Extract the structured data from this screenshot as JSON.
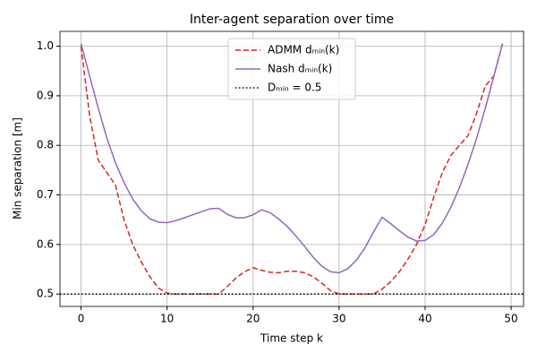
{
  "chart_data": {
    "type": "line",
    "title": "Inter-agent separation over time",
    "xlabel": "Time step k",
    "ylabel": "Min separation [m]",
    "x": [
      0,
      1,
      2,
      3,
      4,
      5,
      6,
      7,
      8,
      9,
      10,
      11,
      12,
      13,
      14,
      15,
      16,
      17,
      18,
      19,
      20,
      21,
      22,
      23,
      24,
      25,
      26,
      27,
      28,
      29,
      30,
      31,
      32,
      33,
      34,
      35,
      36,
      37,
      38,
      39,
      40,
      41,
      42,
      43,
      44,
      45,
      46,
      47,
      48,
      49
    ],
    "series": [
      {
        "name": "ADMM dₘᵢₙ(k)",
        "color": "#d62728",
        "style": "dashed",
        "values": [
          1.0,
          0.86,
          0.77,
          0.745,
          0.72,
          0.65,
          0.6,
          0.565,
          0.535,
          0.512,
          0.502,
          0.5,
          0.5,
          0.5,
          0.5,
          0.5,
          0.5,
          0.515,
          0.532,
          0.545,
          0.553,
          0.548,
          0.544,
          0.543,
          0.546,
          0.546,
          0.543,
          0.535,
          0.522,
          0.507,
          0.5,
          0.5,
          0.5,
          0.5,
          0.5,
          0.51,
          0.525,
          0.545,
          0.57,
          0.6,
          0.64,
          0.695,
          0.745,
          0.78,
          0.8,
          0.82,
          0.865,
          0.92,
          0.94,
          1.005
        ]
      },
      {
        "name": "Nash dₘᵢₙ(k)",
        "color": "#9467bd",
        "style": "solid",
        "values": [
          1.005,
          0.94,
          0.875,
          0.815,
          0.765,
          0.725,
          0.692,
          0.668,
          0.652,
          0.645,
          0.644,
          0.648,
          0.654,
          0.66,
          0.666,
          0.672,
          0.673,
          0.661,
          0.654,
          0.654,
          0.66,
          0.67,
          0.664,
          0.651,
          0.636,
          0.617,
          0.596,
          0.574,
          0.556,
          0.545,
          0.543,
          0.551,
          0.568,
          0.593,
          0.625,
          0.655,
          0.642,
          0.628,
          0.615,
          0.607,
          0.608,
          0.62,
          0.643,
          0.675,
          0.715,
          0.762,
          0.815,
          0.875,
          0.94,
          1.005
        ]
      }
    ],
    "hlines": [
      {
        "name": "Dₘᵢₙ = 0.5",
        "value": 0.5,
        "color": "#000000",
        "style": "dotted"
      }
    ],
    "xlim": [
      -2.45,
      51.45
    ],
    "xticks": [
      0,
      10,
      20,
      30,
      40,
      50
    ],
    "ylim": [
      0.475,
      1.03
    ],
    "yticks": [
      0.5,
      0.6,
      0.7,
      0.8,
      0.9,
      {
        "value": 1,
        "label": "1.0"
      }
    ],
    "grid": true,
    "legend": "upper center"
  }
}
